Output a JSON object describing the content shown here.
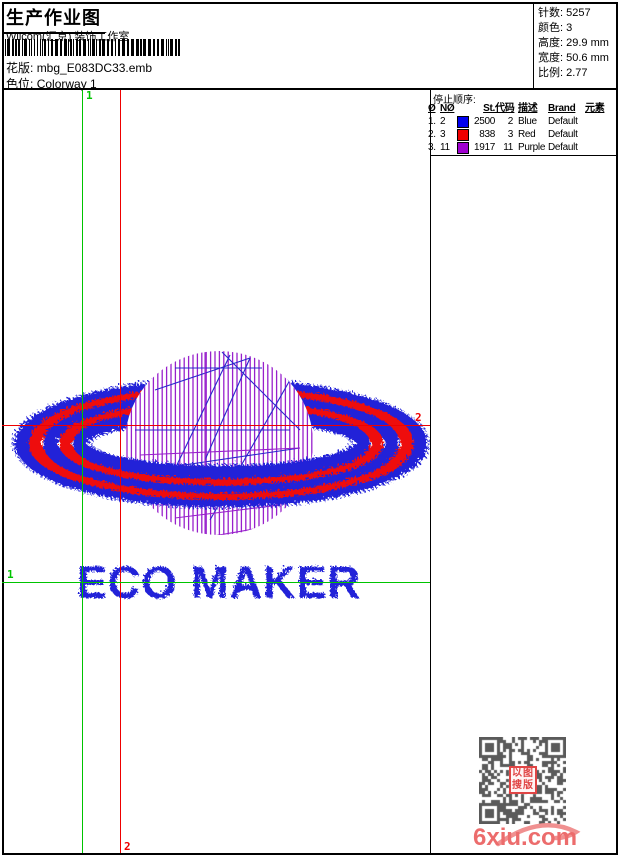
{
  "header": {
    "title": "生产作业图",
    "company": "Wilcom(汇京) 装饰工作室",
    "pattern_label": "花版:",
    "pattern_value": "mbg_E083DC33.emb",
    "colorway_label": "色位:",
    "colorway_value": "Colorway 1",
    "stats": [
      {
        "label": "针数:",
        "value": "5257"
      },
      {
        "label": "颜色:",
        "value": "3"
      },
      {
        "label": "高度:",
        "value": "29.9 mm"
      },
      {
        "label": "宽度:",
        "value": "50.6 mm"
      },
      {
        "label": "比例:",
        "value": "2.77"
      }
    ]
  },
  "stop_sequence": {
    "title": "停止顺序:",
    "columns": {
      "seq": "Ø",
      "needle": "NØ",
      "stitches": "St.",
      "code": "代码",
      "description": "描述",
      "brand": "Brand",
      "element": "元素"
    },
    "rows": [
      {
        "seq": "1.",
        "needle": "2",
        "swatch": "#0000f0",
        "stitches": "2500",
        "code": "2",
        "description": "Blue",
        "brand": "Default",
        "element": ""
      },
      {
        "seq": "2.",
        "needle": "3",
        "swatch": "#f00000",
        "stitches": "838",
        "code": "3",
        "description": "Red",
        "brand": "Default",
        "element": ""
      },
      {
        "seq": "3.",
        "needle": "11",
        "swatch": "#a000d0",
        "stitches": "1917",
        "code": "11",
        "description": "Purple",
        "brand": "Default",
        "element": ""
      }
    ]
  },
  "markers": {
    "start": "1",
    "end": "2",
    "start_color": "#00c400",
    "end_color": "#ee0000"
  },
  "design": {
    "text": "ECO MAKER",
    "text_color": "#2020d8",
    "ring_blue": "#2222d8",
    "ring_red": "#ee1010",
    "sphere_purple": "#9820cc"
  },
  "watermark": {
    "text": "6xiu.com",
    "color": "#ec6c6c",
    "seal_top": "以图",
    "seal_bottom": "搜版"
  }
}
